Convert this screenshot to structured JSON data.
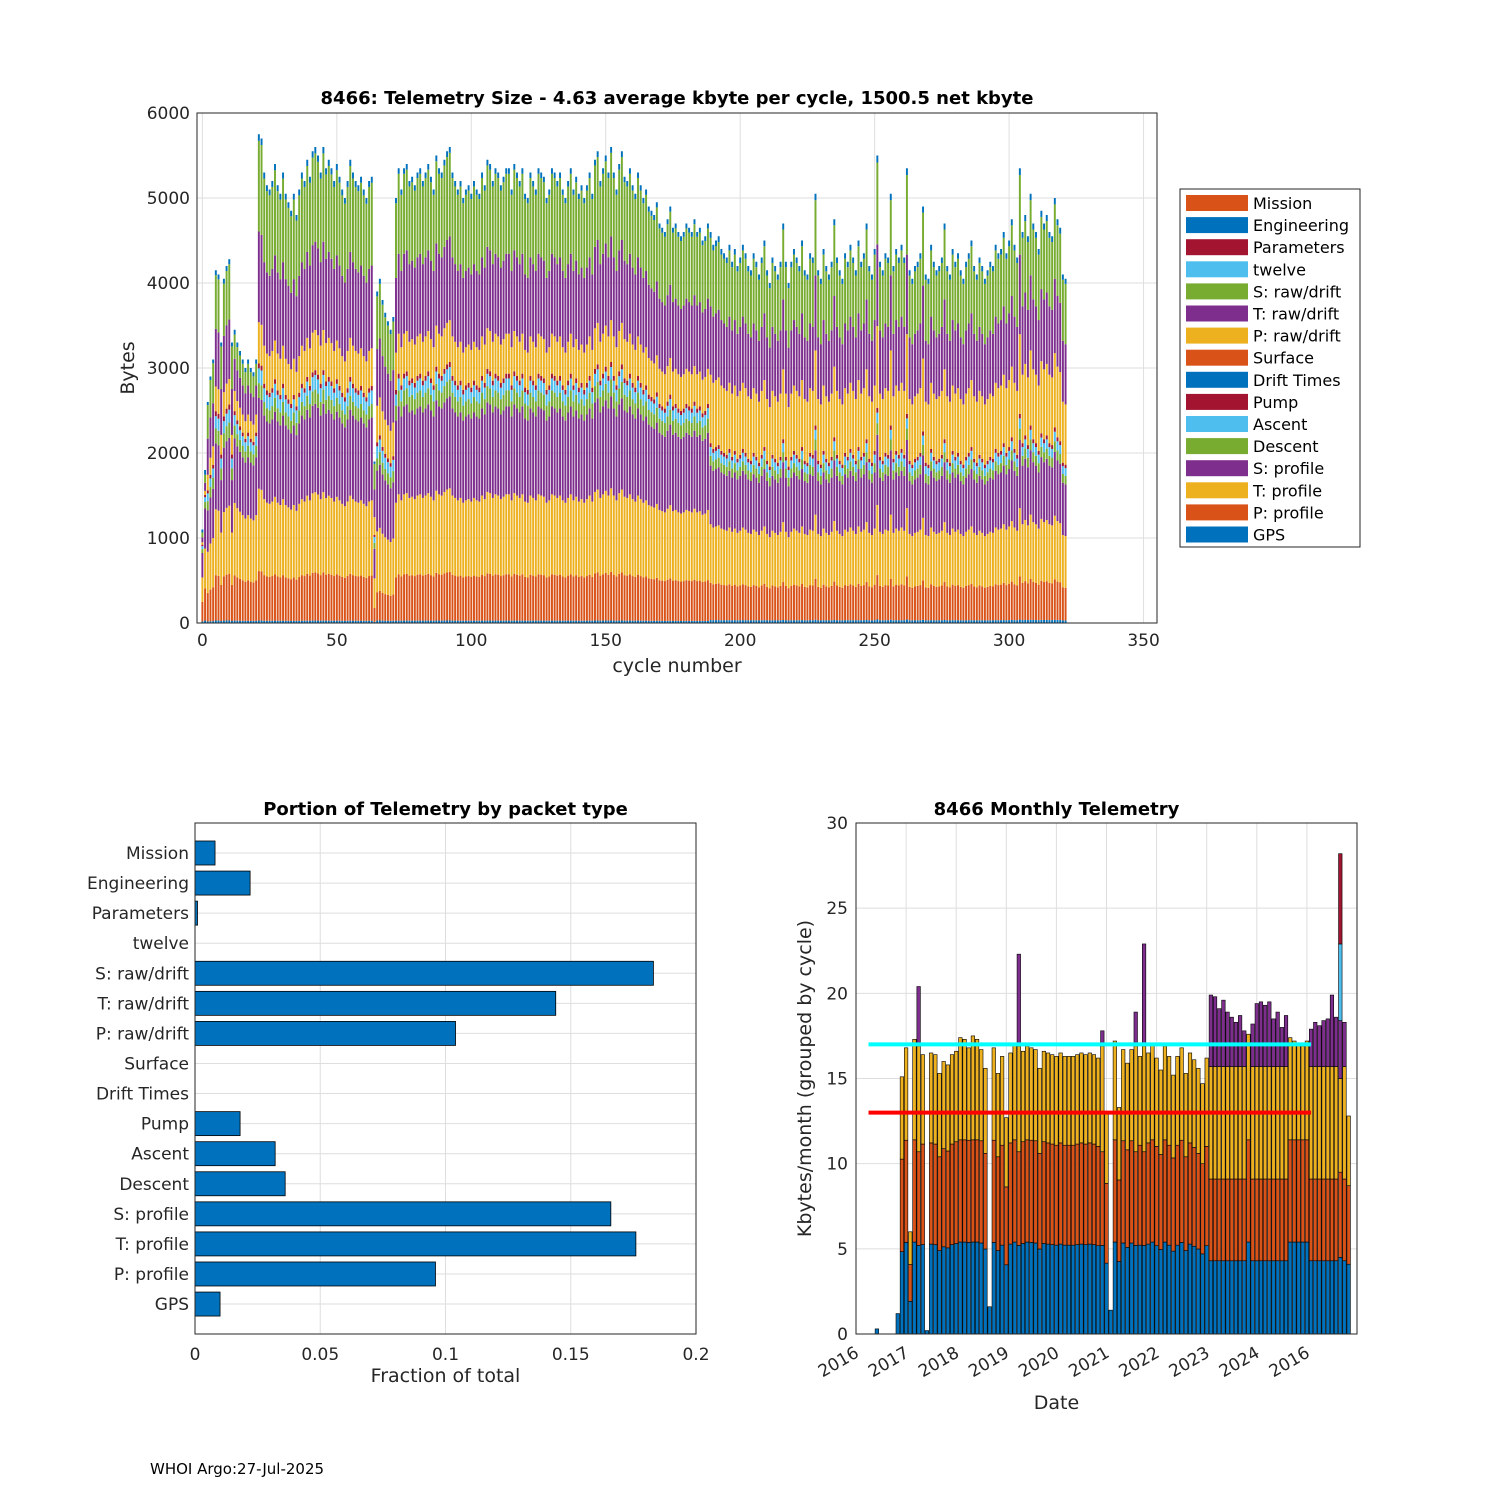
{
  "footer": "WHOI Argo:27-Jul-2025",
  "colors": {
    "orange": "#D95319",
    "blue": "#0072BD",
    "darkred": "#A2142F",
    "cyan": "#4DBEEE",
    "green": "#77AC30",
    "purple": "#7E2F8E",
    "yellow": "#EDB120",
    "line_cyan": "#00FFFF",
    "line_red": "#FF0000",
    "grid": "#DEDEDE"
  },
  "chart_data": [
    {
      "type": "bar",
      "stacked": true,
      "title": "8466: Telemetry Size - 4.63 average kbyte per cycle, 1500.5 net kbyte",
      "xlabel": "cycle number",
      "ylabel": "Bytes",
      "xlim": [
        -2,
        355
      ],
      "ylim": [
        0,
        6000
      ],
      "xticks": [
        0,
        50,
        100,
        150,
        200,
        250,
        300,
        350
      ],
      "yticks": [
        0,
        1000,
        2000,
        3000,
        4000,
        5000,
        6000
      ],
      "grid": true,
      "legend_position": "right-outside",
      "legend": [
        "Mission",
        "Engineering",
        "Parameters",
        "twelve",
        "S: raw/drift",
        "T: raw/drift",
        "P: raw/drift",
        "Surface",
        "Drift Times",
        "Pump",
        "Ascent",
        "Descent",
        "S: profile",
        "T: profile",
        "P: profile",
        "GPS"
      ],
      "legend_colors": [
        "#D95319",
        "#0072BD",
        "#A2142F",
        "#4DBEEE",
        "#77AC30",
        "#7E2F8E",
        "#EDB120",
        "#D95319",
        "#0072BD",
        "#A2142F",
        "#4DBEEE",
        "#77AC30",
        "#7E2F8E",
        "#EDB120",
        "#D95319",
        "#0072BD"
      ],
      "stack_order": [
        "GPS",
        "P: profile",
        "T: profile",
        "S: profile",
        "Descent",
        "Ascent",
        "Pump",
        "P: raw/drift",
        "T: raw/drift",
        "S: raw/drift",
        "Mission"
      ],
      "stack_colors": [
        "#0072BD",
        "#D95319",
        "#EDB120",
        "#7E2F8E",
        "#77AC30",
        "#4DBEEE",
        "#A2142F",
        "#EDB120",
        "#7E2F8E",
        "#77AC30",
        "#0072BD"
      ],
      "cycles": {
        "start": 0,
        "end": 321
      },
      "segments": [
        {
          "from": 0,
          "to": 1,
          "totals": [
            1100,
            1800,
            2550
          ],
          "values": [
            30,
            400,
            500,
            500,
            80,
            60,
            30,
            50,
            100,
            100,
            60
          ]
        },
        {
          "from": 2,
          "to": 11,
          "totals": [
            2600,
            2900,
            3100,
            4150,
            4100,
            3300,
            4050,
            4200,
            4280,
            3300
          ],
          "values": [
            30,
            550,
            800,
            800,
            180,
            150,
            60,
            300,
            700,
            650,
            60
          ]
        },
        {
          "from": 12,
          "to": 20,
          "totals": [
            3450,
            3300,
            3200,
            3100,
            3000,
            3100,
            3000,
            2950,
            3100
          ],
          "values": [
            30,
            560,
            900,
            800,
            160,
            130,
            50,
            250,
            400,
            300,
            60
          ]
        },
        {
          "from": 21,
          "to": 63,
          "totals": [
            5750,
            5700,
            5300,
            5150,
            5100,
            5200,
            5400,
            5150,
            5050,
            5300,
            5050,
            4950,
            4850,
            5050,
            4800,
            5100,
            5300,
            5200,
            5450,
            5250,
            5550,
            5600,
            5500,
            5300,
            5600,
            5350,
            5450,
            5350,
            5200,
            5400,
            5250,
            5100,
            5000,
            5200,
            5450,
            5300,
            5200,
            5150,
            5250,
            5100,
            5000,
            5200,
            5250
          ],
          "values": [
            30,
            600,
            1000,
            1100,
            180,
            180,
            60,
            500,
            1100,
            1100,
            80
          ]
        },
        {
          "from": 64,
          "to": 71,
          "totals": [
            1900,
            3900,
            4050,
            3800,
            3650,
            3550,
            3450,
            3600
          ],
          "values": [
            30,
            350,
            750,
            750,
            150,
            150,
            50,
            450,
            700,
            650,
            60
          ]
        },
        {
          "from": 72,
          "to": 188,
          "totals": [
            5000,
            5350,
            5100,
            5350,
            5400,
            5200,
            5250,
            5150,
            5300,
            5350,
            5200,
            5300,
            5400,
            5250,
            5100,
            5500,
            5350,
            5300,
            5450,
            5550,
            5600,
            5300,
            5200,
            5100,
            5200,
            5000,
            5100,
            5150,
            5050,
            5200,
            5100,
            5050,
            5300,
            5150,
            5450,
            5400,
            5200,
            5350,
            5300,
            5150,
            5250,
            5350,
            5350,
            5100,
            5400,
            5300,
            5200,
            5350,
            5050,
            5000,
            5300,
            5200,
            5100,
            5350,
            5300,
            5250,
            5000,
            5100,
            5350,
            5300,
            5200,
            5300,
            5100,
            5000,
            5200,
            5350,
            5100,
            5250,
            5050,
            5150,
            5000,
            5150,
            5300,
            5050,
            5450,
            5550,
            5200,
            5350,
            5500,
            5300,
            5600,
            5300,
            5100,
            5400,
            5550,
            5250,
            5200,
            5350,
            5150,
            5050,
            5300,
            5150,
            5000,
            5100,
            4900,
            4850,
            4800,
            4950,
            4700,
            4650,
            4600,
            4750,
            4900,
            4650,
            4700,
            4600,
            4550,
            4600,
            4700,
            4650,
            4600,
            4750,
            4600,
            4650,
            4500,
            4550,
            4700
          ],
          "values": [
            30,
            580,
            1000,
            1100,
            200,
            150,
            60,
            500,
            1000,
            1000,
            70
          ]
        },
        {
          "from": 189,
          "to": 321,
          "totals": [
            4600,
            4450,
            4500,
            4550,
            4400,
            4350,
            4300,
            4450,
            4250,
            4400,
            4200,
            4300,
            4450,
            4350,
            4200,
            4150,
            4350,
            4250,
            4100,
            4300,
            4500,
            4150,
            4000,
            4300,
            4200,
            4100,
            4250,
            4700,
            4250,
            4000,
            4250,
            4400,
            4300,
            4200,
            4500,
            4150,
            4100,
            4350,
            4300,
            5050,
            4150,
            4050,
            4400,
            4200,
            4100,
            4250,
            4750,
            4300,
            4150,
            4050,
            4350,
            4250,
            4450,
            4300,
            4150,
            4500,
            4250,
            4350,
            4700,
            4200,
            4100,
            4400,
            5500,
            4250,
            4150,
            4350,
            4300,
            5050,
            4200,
            4400,
            4300,
            4450,
            4300,
            5350,
            4150,
            4050,
            4200,
            4250,
            4350,
            4900,
            4100,
            4050,
            4450,
            4250,
            4150,
            4200,
            4300,
            4700,
            4200,
            4100,
            4400,
            4250,
            4350,
            4150,
            4050,
            4250,
            4350,
            4500,
            4200,
            4100,
            4300,
            4200,
            4050,
            4150,
            4250,
            4200,
            4450,
            4350,
            4400,
            4600,
            4350,
            4500,
            4750,
            4450,
            4300,
            5350,
            4600,
            4800,
            4550,
            5050,
            4700,
            4600,
            4400,
            4850,
            4700,
            4800,
            4600,
            4550,
            5000,
            4750,
            4650,
            4100,
            4050
          ],
          "values": [
            30,
            380,
            600,
            600,
            100,
            90,
            40,
            700,
            700,
            700,
            60
          ]
        }
      ]
    },
    {
      "type": "bar",
      "orientation": "horizontal",
      "title": "Portion of Telemetry by packet type",
      "xlabel": "Fraction of total",
      "ylabel": "",
      "xlim": [
        0,
        0.2
      ],
      "xticks": [
        0,
        0.05,
        0.1,
        0.15,
        0.2
      ],
      "xtick_labels": [
        "0",
        "0.05",
        "0.1",
        "0.15",
        "0.2"
      ],
      "grid": true,
      "categories": [
        "Mission",
        "Engineering",
        "Parameters",
        "twelve",
        "S: raw/drift",
        "T: raw/drift",
        "P: raw/drift",
        "Surface",
        "Drift Times",
        "Pump",
        "Ascent",
        "Descent",
        "S: profile",
        "T: profile",
        "P: profile",
        "GPS"
      ],
      "values": [
        0.008,
        0.022,
        0.001,
        0.0,
        0.183,
        0.144,
        0.104,
        0.0,
        0.0,
        0.018,
        0.032,
        0.036,
        0.166,
        0.176,
        0.096,
        0.01
      ]
    },
    {
      "type": "bar",
      "stacked": true,
      "title": "8466 Monthly Telemetry",
      "xlabel": "Date",
      "ylabel": "Kbytes/month (grouped by cycle)",
      "ylim": [
        0,
        30
      ],
      "yticks": [
        0,
        5,
        10,
        15,
        20,
        25,
        30
      ],
      "xtick_labels": [
        "2016",
        "2017",
        "2018",
        "2019",
        "2020",
        "2021",
        "2022",
        "2023",
        "2024",
        "2016"
      ],
      "grid": true,
      "xlim_months": [
        0,
        120
      ],
      "hlines": [
        {
          "y": 17.0,
          "color": "#00FFFF"
        },
        {
          "y": 13.0,
          "color": "#FF0000"
        }
      ],
      "stack_colors": [
        "#0072BD",
        "#D95319",
        "#EDB120",
        "#7E2F8E",
        "#4DBEEE",
        "#A2142F"
      ],
      "first_month": 5,
      "totals": [
        0.3,
        0,
        0,
        0,
        0,
        1.2,
        15.1,
        16.8,
        6.0,
        17.3,
        20.4,
        16.4,
        0.2,
        16.5,
        16.4,
        15.3,
        16.0,
        15.8,
        16.4,
        16.6,
        17.4,
        17.3,
        16.8,
        17.5,
        17.3,
        16.7,
        15.6,
        1.6,
        16.8,
        15.3,
        16.3,
        12.7,
        16.5,
        17.0,
        22.3,
        16.6,
        16.9,
        16.8,
        16.7,
        15.6,
        16.6,
        16.5,
        16.4,
        16.3,
        16.5,
        16.3,
        16.3,
        16.3,
        16.4,
        16.5,
        16.4,
        16.5,
        16.4,
        16.2,
        17.8,
        13.0,
        1.4,
        17.2,
        13.3,
        16.7,
        15.9,
        16.7,
        18.9,
        16.3,
        22.9,
        16.5,
        17.0,
        16.2,
        15.5,
        16.9,
        16.3,
        15.2,
        16.3,
        16.8,
        15.3,
        16.5,
        16.1,
        15.6,
        14.7,
        16.2,
        19.9,
        19.8,
        19.1,
        19.6,
        18.9,
        18.6,
        18.3,
        18.7,
        17.8,
        17.6,
        18.2,
        19.4,
        19.5,
        19.3,
        19.5,
        18.5,
        18.9,
        18.0,
        18.7,
        17.4,
        17.2,
        17.0,
        16.9,
        17.2,
        17.9,
        18.3,
        18.1,
        18.4,
        18.5,
        19.9,
        18.6,
        28.2,
        18.3,
        12.8
      ]
    }
  ]
}
